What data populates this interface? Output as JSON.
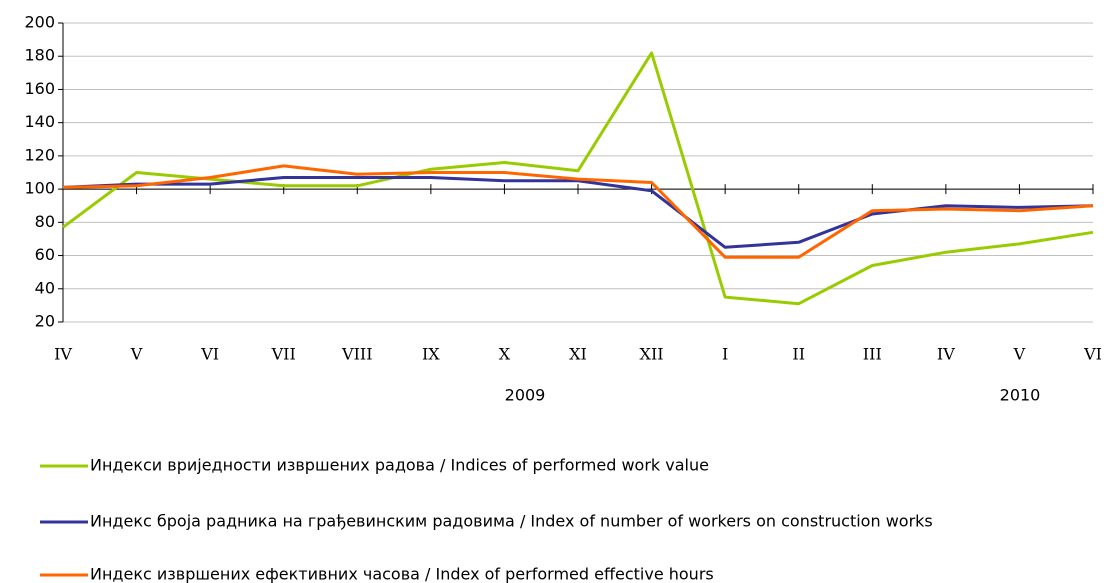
{
  "chart_data": {
    "type": "line",
    "categories": [
      "IV",
      "V",
      "VI",
      "VII",
      "VIII",
      "IX",
      "X",
      "XI",
      "XII",
      "I",
      "II",
      "III",
      "IV",
      "V",
      "VI"
    ],
    "x_groups": [
      {
        "label": "2009",
        "start": 0,
        "end": 8
      },
      {
        "label": "2010",
        "start": 9,
        "end": 14
      }
    ],
    "series": [
      {
        "name": "Индекси вриједности извршених радова / Indices of performed work value",
        "color": "#99cc00",
        "values": [
          77,
          110,
          106,
          102,
          102,
          112,
          116,
          111,
          182,
          35,
          31,
          54,
          62,
          67,
          74
        ]
      },
      {
        "name": "Индекс броја радника на грађевинским радовима / Index of number of workers on construction works",
        "color": "#333399",
        "values": [
          101,
          103,
          103,
          107,
          107,
          107,
          105,
          105,
          99,
          65,
          68,
          85,
          90,
          89,
          90
        ]
      },
      {
        "name": "Индекс извршених ефективних часова / Index of performed effective hours",
        "color": "#ff6600",
        "values": [
          101,
          102,
          107,
          114,
          109,
          110,
          110,
          106,
          104,
          59,
          59,
          87,
          88,
          87,
          90
        ]
      }
    ],
    "ylim": [
      20,
      200
    ],
    "yticks": [
      20,
      40,
      60,
      80,
      100,
      120,
      140,
      160,
      180,
      200
    ],
    "x_axis_crosses": 100,
    "grid": true,
    "legend": "bottom"
  }
}
